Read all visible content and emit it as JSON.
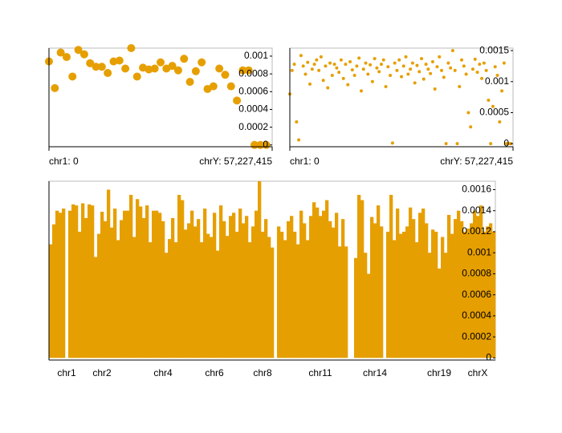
{
  "chart_data": [
    {
      "type": "scatter",
      "color": "#e69f00",
      "x": [
        0,
        1,
        2,
        3,
        4,
        5,
        6,
        7,
        8,
        9,
        10,
        11,
        12,
        13,
        14,
        15,
        16,
        17,
        18,
        19,
        20,
        21,
        22,
        23,
        24,
        25,
        26,
        27,
        28,
        29,
        30,
        31,
        32,
        33,
        34,
        35,
        36,
        37
      ],
      "values": [
        0.00094,
        0.00064,
        0.00104,
        0.00099,
        0.00077,
        0.00107,
        0.00102,
        0.00092,
        0.00088,
        0.00088,
        0.00081,
        0.00094,
        0.00095,
        0.00086,
        0.00109,
        0.00077,
        0.00087,
        0.00085,
        0.00086,
        0.00093,
        0.00086,
        0.00089,
        0.00084,
        0.00097,
        0.00071,
        0.00083,
        0.00093,
        0.00063,
        0.00066,
        0.00086,
        0.00079,
        0.00066,
        0.0005,
        0.00084,
        0.00084,
        0,
        0,
        0
      ],
      "xlim": [
        0,
        38
      ],
      "xticks": [
        {
          "value": 0,
          "label": "chr1: 0"
        },
        {
          "value": 38,
          "label": "chrY: 57,227,415"
        }
      ],
      "ylim": [
        -2e-05,
        0.00109
      ],
      "yticks": [
        0,
        0.0002,
        0.0004,
        0.0006,
        0.0008,
        0.001
      ]
    },
    {
      "type": "scatter",
      "color": "#e69f00",
      "x": [
        0,
        1,
        2,
        3,
        4,
        5,
        6,
        7,
        8,
        9,
        10,
        11,
        12,
        13,
        14,
        15,
        16,
        17,
        18,
        19,
        20,
        21,
        22,
        23,
        24,
        25,
        26,
        27,
        28,
        29,
        30,
        31,
        32,
        33,
        34,
        35,
        36,
        37,
        38,
        39,
        40,
        41,
        42,
        43,
        44,
        45,
        46,
        47,
        48,
        49,
        50,
        51,
        52,
        53,
        54,
        55,
        56,
        57,
        58,
        59,
        60,
        61,
        62,
        63,
        64,
        65,
        66,
        67,
        68,
        69,
        70,
        71,
        72,
        73,
        74,
        75,
        76,
        77,
        78,
        79,
        80,
        81,
        82,
        83,
        84,
        85,
        86,
        87,
        88,
        89,
        90,
        91,
        92,
        93,
        94,
        95,
        96,
        97,
        98,
        99
      ],
      "values": [
        0.0008,
        0.00118,
        0.00128,
        0.00035,
        6e-05,
        0.00142,
        0.00125,
        0.00112,
        0.00131,
        0.00096,
        0.0012,
        0.00128,
        0.00135,
        0.00118,
        0.0014,
        0.00102,
        0.00125,
        0.0009,
        0.0013,
        0.0011,
        0.00128,
        0.00122,
        0.00115,
        0.00135,
        0.00105,
        0.00128,
        0.00095,
        0.00132,
        0.00119,
        0.0011,
        0.00125,
        0.00138,
        0.00085,
        0.0012,
        0.0013,
        0.00112,
        0.00127,
        0.001,
        0.00137,
        0.00122,
        0.00116,
        0.00128,
        0.00135,
        0.00092,
        0.00124,
        0.0011,
        1e-05,
        0.0013,
        0.00118,
        0.00135,
        0.00108,
        0.00125,
        0.0014,
        0.00112,
        0.0012,
        0.0013,
        0.00098,
        0.00126,
        0.00116,
        0.00137,
        0.00104,
        0.00128,
        0.0012,
        0.00113,
        0.00132,
        0.00088,
        0.00124,
        0.0014,
        0.00118,
        0.00107,
        0,
        0.0013,
        0.00122,
        0.0015,
        0.00118,
        0,
        0.00092,
        0.00135,
        0.00125,
        0.00112,
        0.0005,
        0.00027,
        0.0012,
        0.00136,
        0.00115,
        0.00128,
        0.00105,
        0.0013,
        0.00118,
        0.0007,
        0,
        0.0006,
        0.00124,
        0.0011,
        0.00035,
        0.00085,
        0.0013,
        0,
        0,
        0
      ],
      "xlim": [
        0,
        100
      ],
      "xticks": [
        {
          "value": 0,
          "label": "chr1: 0"
        },
        {
          "value": 100,
          "label": "chrY: 57,227,415"
        }
      ],
      "ylim": [
        -5e-05,
        0.00154
      ],
      "yticks": [
        0,
        0.0005,
        0.001,
        0.0015
      ]
    },
    {
      "type": "bar",
      "color": "#e69f00",
      "categories": [
        null,
        null,
        null,
        null,
        null,
        "chr1",
        null,
        null,
        null,
        null,
        null,
        null,
        null,
        null,
        null,
        null,
        "chr2",
        null,
        null,
        null,
        null,
        null,
        null,
        null,
        null,
        null,
        null,
        null,
        null,
        null,
        null,
        null,
        null,
        null,
        null,
        "chr4",
        null,
        null,
        null,
        null,
        null,
        null,
        null,
        null,
        null,
        null,
        null,
        null,
        null,
        null,
        null,
        "chr6",
        null,
        null,
        null,
        null,
        null,
        null,
        null,
        null,
        null,
        null,
        null,
        null,
        null,
        null,
        "chr8",
        null,
        null,
        null,
        null,
        null,
        null,
        null,
        null,
        null,
        null,
        null,
        null,
        null,
        null,
        null,
        null,
        null,
        "chr11",
        null,
        null,
        null,
        null,
        null,
        null,
        null,
        null,
        null,
        null,
        null,
        null,
        null,
        null,
        null,
        null,
        "chr14",
        null,
        null,
        null,
        null,
        null,
        null,
        null,
        null,
        null,
        null,
        null,
        null,
        null,
        null,
        null,
        null,
        null,
        null,
        null,
        "chr19",
        null,
        null,
        null,
        null,
        null,
        null,
        null,
        null,
        null,
        null,
        null,
        "chrX",
        null,
        null,
        null,
        null,
        null
      ],
      "values": [
        0.00108,
        0.00127,
        0.0014,
        0.00138,
        0.00142,
        0,
        0.0014,
        0.00146,
        0.00145,
        0.0012,
        0.00147,
        0.00133,
        0.00146,
        0.00145,
        0.00096,
        0.00118,
        0.00139,
        0.0013,
        0.0016,
        0.00124,
        0.00142,
        0.00112,
        0.00131,
        0.0014,
        0.0014,
        0.00155,
        0.00115,
        0.00151,
        0.00144,
        0.00133,
        0.00145,
        0.0011,
        0.0014,
        0.0014,
        0.00138,
        0.0013,
        0.001,
        0.00113,
        0.00133,
        0.0011,
        0.00155,
        0.0015,
        0.00122,
        0.00128,
        0.0014,
        0.00125,
        0.00132,
        0.0011,
        0.00142,
        0.00118,
        0.00115,
        0.00138,
        0.00102,
        0.00145,
        0.0013,
        0.00116,
        0.00135,
        0.00138,
        0.0012,
        0.00142,
        0.00128,
        0.00135,
        0.0011,
        0.00125,
        0.0014,
        0.00168,
        0.0012,
        0.00132,
        0.00115,
        0.00105,
        0,
        0.00125,
        0.0012,
        0.00112,
        0.0013,
        0.00135,
        0.0012,
        0.00108,
        0.0014,
        0.00128,
        0.00112,
        0.00135,
        0.00148,
        0.00143,
        0.00135,
        0.0014,
        0.0015,
        0.0013,
        0.00124,
        0.00138,
        0.00106,
        0.00132,
        0.00106,
        0,
        0,
        0.00095,
        0.00155,
        0.0015,
        0.001,
        0.0008,
        0.00134,
        0.00128,
        0.00145,
        0.00125,
        0,
        0.0012,
        0.00155,
        0.00112,
        0.00142,
        0.00118,
        0.0012,
        0.00125,
        0.00143,
        0.00132,
        0.0011,
        0.00138,
        0.00142,
        0.00128,
        0.001,
        0.00122,
        0.0012,
        0.00085,
        0.00115,
        0.001,
        0.00136,
        0.00118,
        0.00132,
        0.0014,
        0.0013,
        0.0012,
        0.00123,
        0.00128,
        0.0014,
        0.00135,
        0.00145,
        0.0012,
        0.00125,
        0.00128,
        0.0012
      ],
      "ylim": [
        -2e-05,
        0.00168
      ],
      "yticks": [
        0,
        0.0002,
        0.0004,
        0.0006,
        0.0008,
        0.001,
        0.0012,
        0.0014,
        0.0016
      ]
    }
  ]
}
